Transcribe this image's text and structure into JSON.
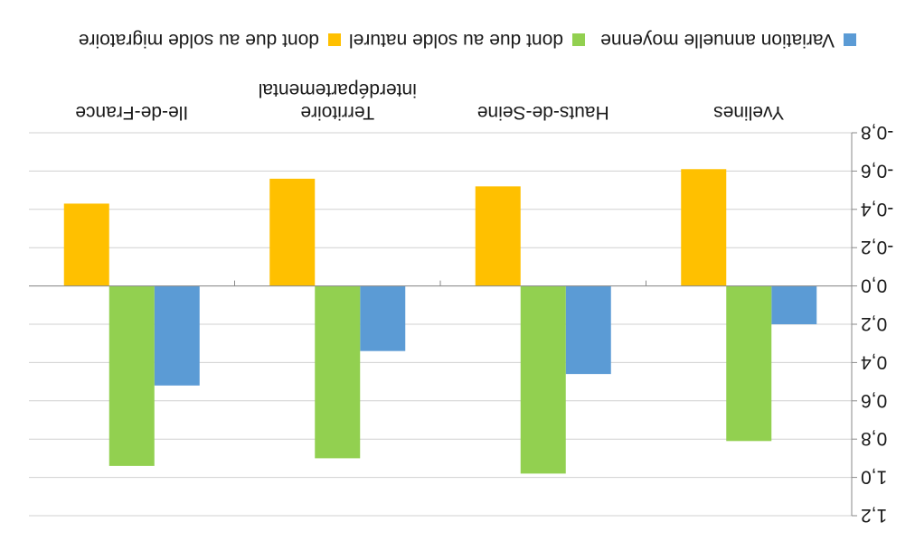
{
  "chart_data": {
    "type": "bar",
    "title": "",
    "xlabel": "",
    "ylabel": "",
    "orientation": "rotated 180 degrees",
    "categories": [
      "Yvelines",
      "Hauts-de-Seine",
      "Territoire interdépartemental",
      "Ile-de-France"
    ],
    "category_lines": [
      [
        "Yvelines"
      ],
      [
        "Hauts-de-Seine"
      ],
      [
        "Territoire",
        "interdépartemental"
      ],
      [
        "Ile-de-France"
      ]
    ],
    "series": [
      {
        "name": "Variation annuelle moyenne",
        "color": "#5b9bd5",
        "values": [
          0.2,
          0.46,
          0.34,
          0.52
        ]
      },
      {
        "name": "dont due au solde naturel",
        "color": "#92d050",
        "values": [
          0.81,
          0.98,
          0.9,
          0.94
        ]
      },
      {
        "name": "dont due au solde migratoire",
        "color": "#ffc000",
        "values": [
          -0.61,
          -0.52,
          -0.56,
          -0.43
        ]
      }
    ],
    "ylim": [
      -0.8,
      1.2
    ],
    "yticks": [
      -0.8,
      -0.6,
      -0.4,
      -0.2,
      0.0,
      0.2,
      0.4,
      0.6,
      0.8,
      1.0,
      1.2
    ],
    "ytick_labels": [
      "-0,8",
      "-0,6",
      "-0,4",
      "-0,2",
      "0,0",
      "0,2",
      "0,4",
      "0,6",
      "0,8",
      "1,0",
      "1,2"
    ],
    "grid": true,
    "legend_position": "bottom"
  }
}
